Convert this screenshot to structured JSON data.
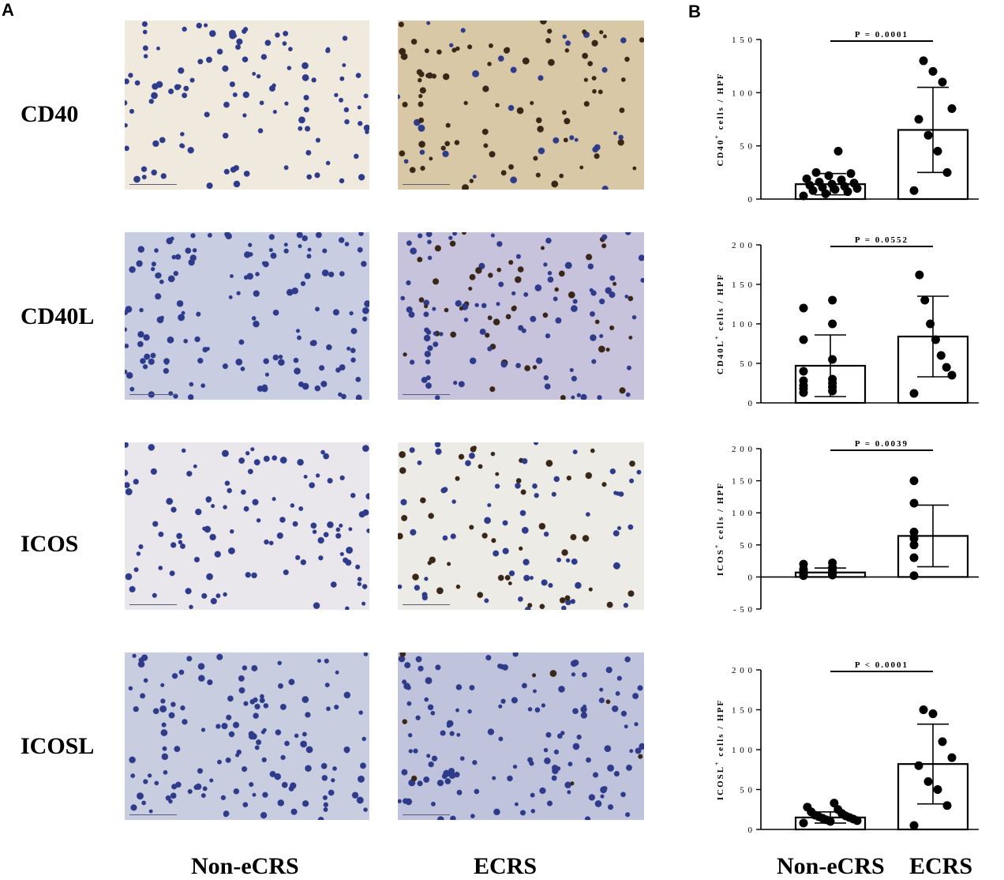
{
  "panels": {
    "a": "A",
    "b": "B"
  },
  "rows": [
    {
      "label": "CD40"
    },
    {
      "label": "CD40L"
    },
    {
      "label": "ICOS"
    },
    {
      "label": "ICOSL"
    }
  ],
  "groups": [
    "Non-eCRS",
    "ECRS"
  ],
  "micro_colors": {
    "bg": [
      "#efe9de",
      "#c8cde2",
      "#e9e7ec",
      "#c9cde0"
    ],
    "bg_ecrs": [
      "#d8c8a6",
      "#c7c3dc",
      "#ecebe6",
      "#bfc4dc"
    ],
    "nuclei": "#2e3a8a",
    "stained": "#3a2616"
  },
  "chart_data": [
    {
      "type": "bar",
      "categories": [
        "Non-eCRS",
        "ECRS"
      ],
      "ylabel": "CD40+ cells / HPF",
      "ylim": [
        0,
        150
      ],
      "yticks": [
        0,
        50,
        100,
        150
      ],
      "means": [
        14,
        65
      ],
      "sd": [
        10,
        40
      ],
      "points": [
        [
          3,
          5,
          7,
          8,
          9,
          10,
          11,
          12,
          13,
          14,
          15,
          16,
          18,
          19,
          22,
          24,
          25,
          45
        ],
        [
          8,
          25,
          45,
          60,
          75,
          85,
          110,
          120,
          130
        ]
      ],
      "annotation": "P = 0.0001"
    },
    {
      "type": "bar",
      "categories": [
        "Non-eCRS",
        "ECRS"
      ],
      "ylabel": "CD40L+ cells / HPF",
      "ylim": [
        0,
        200
      ],
      "yticks": [
        0,
        50,
        100,
        150,
        200
      ],
      "means": [
        47,
        84
      ],
      "sd": [
        39,
        51
      ],
      "points": [
        [
          13,
          15,
          18,
          20,
          22,
          25,
          28,
          30,
          40,
          55,
          80,
          100,
          120,
          130
        ],
        [
          12,
          35,
          45,
          60,
          80,
          100,
          130,
          162
        ]
      ],
      "annotation": "P = 0.0552"
    },
    {
      "type": "bar",
      "categories": [
        "Non-eCRS",
        "ECRS"
      ],
      "ylabel": "ICOS+ cells / HPF",
      "ylim": [
        -50,
        200
      ],
      "yticks": [
        -50,
        0,
        50,
        100,
        150,
        200
      ],
      "means": [
        7,
        64
      ],
      "sd": [
        7,
        48
      ],
      "points": [
        [
          2,
          3,
          4,
          5,
          5,
          6,
          6,
          7,
          8,
          10,
          12,
          15,
          20,
          22
        ],
        [
          2,
          30,
          50,
          60,
          70,
          115,
          150
        ]
      ],
      "annotation": "P = 0.0039"
    },
    {
      "type": "bar",
      "categories": [
        "Non-eCRS",
        "ECRS"
      ],
      "ylabel": "ICOSL+ cells / HPF",
      "ylim": [
        0,
        200
      ],
      "yticks": [
        0,
        50,
        100,
        150,
        200
      ],
      "means": [
        15,
        82
      ],
      "sd": [
        7,
        50
      ],
      "points": [
        [
          8,
          10,
          11,
          12,
          13,
          14,
          15,
          16,
          17,
          18,
          20,
          22,
          25,
          28,
          33
        ],
        [
          5,
          30,
          50,
          60,
          80,
          90,
          110,
          145,
          150
        ]
      ],
      "annotation": "P < 0.0001"
    }
  ]
}
